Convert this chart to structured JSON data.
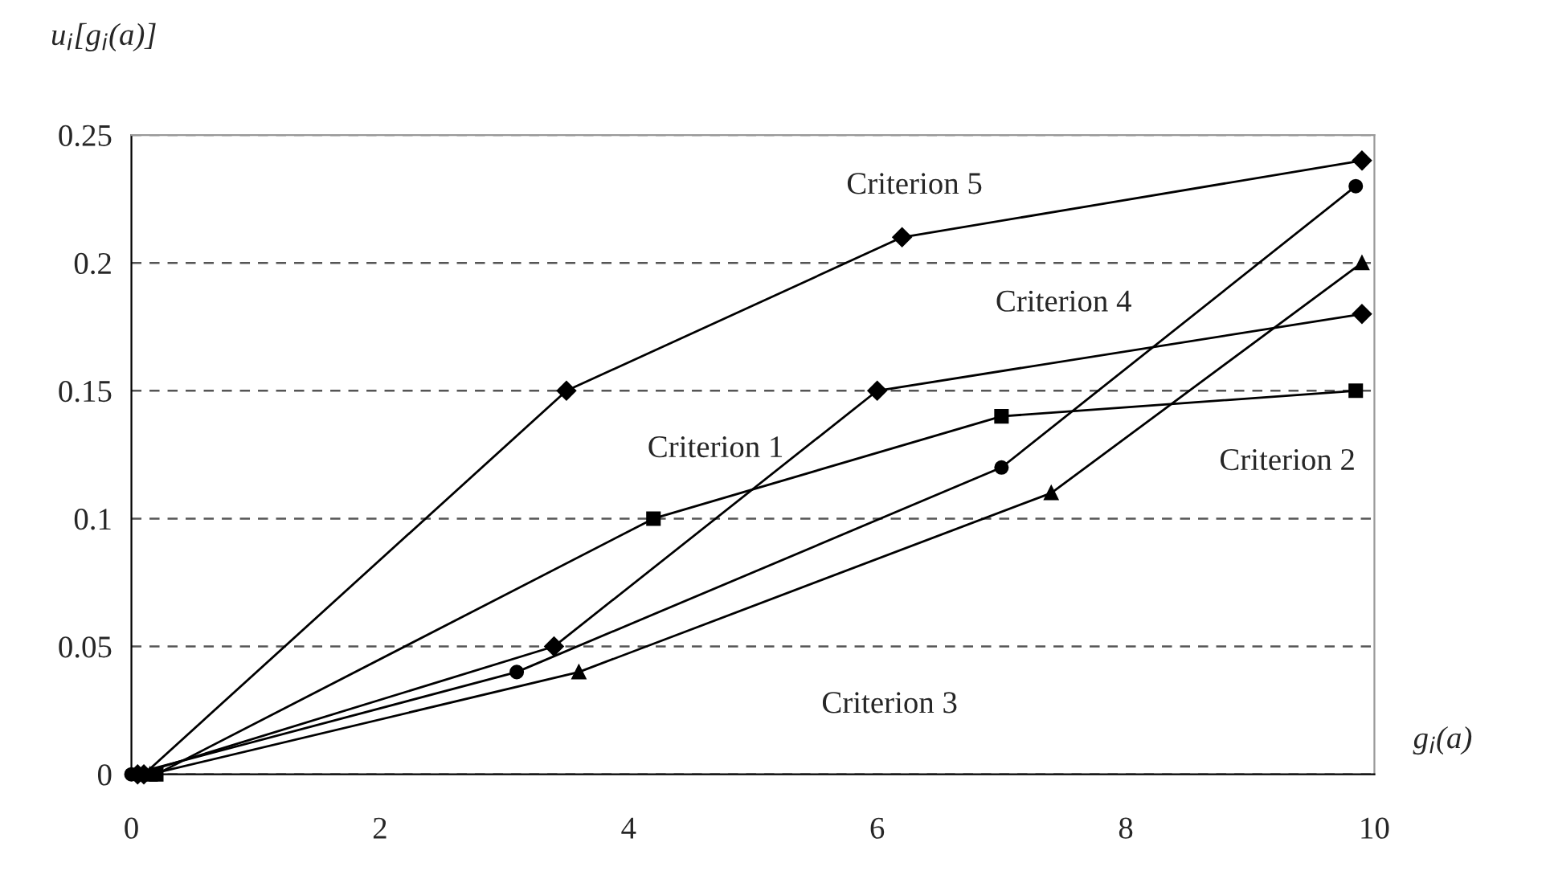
{
  "chart_data": {
    "type": "line",
    "xlabel": "g$_{i}$(a)",
    "ylabel": "u$_{i}$[g$_{i}$(a)]",
    "xlim": [
      0,
      10
    ],
    "xticks": [
      0,
      2,
      4,
      6,
      8,
      10
    ],
    "ylim": [
      0,
      0.25
    ],
    "yticks": [
      0,
      0.05,
      0.1,
      0.15,
      0.2,
      0.25
    ],
    "grid": "y",
    "line_style": "solid",
    "series": [
      {
        "color": "#000000",
        "marker": "diamond",
        "x": [
          0.1,
          3.5,
          6.2,
          9.9
        ],
        "values": [
          0,
          0.15,
          0.21,
          0.24
        ]
      },
      {
        "color": "#000000",
        "marker": "diamond",
        "x": [
          0.05,
          3.4,
          6.0,
          9.9
        ],
        "values": [
          0,
          0.05,
          0.15,
          0.18
        ]
      },
      {
        "color": "#000000",
        "marker": "square",
        "x": [
          0.2,
          4.2,
          7.0,
          9.85
        ],
        "values": [
          0,
          0.1,
          0.14,
          0.15
        ]
      },
      {
        "color": "#000000",
        "marker": "circle",
        "x": [
          0.0,
          3.1,
          7.0,
          9.85
        ],
        "values": [
          0,
          0.04,
          0.12,
          0.23
        ]
      },
      {
        "color": "#000000",
        "marker": "triangle",
        "x": [
          0.15,
          3.6,
          7.4,
          9.9
        ],
        "values": [
          0,
          0.04,
          0.11,
          0.2
        ]
      }
    ],
    "annotations": [
      "Criterion 5",
      "Criterion 4",
      "Criterion 1",
      "Criterion 2",
      "Criterion 3"
    ]
  }
}
